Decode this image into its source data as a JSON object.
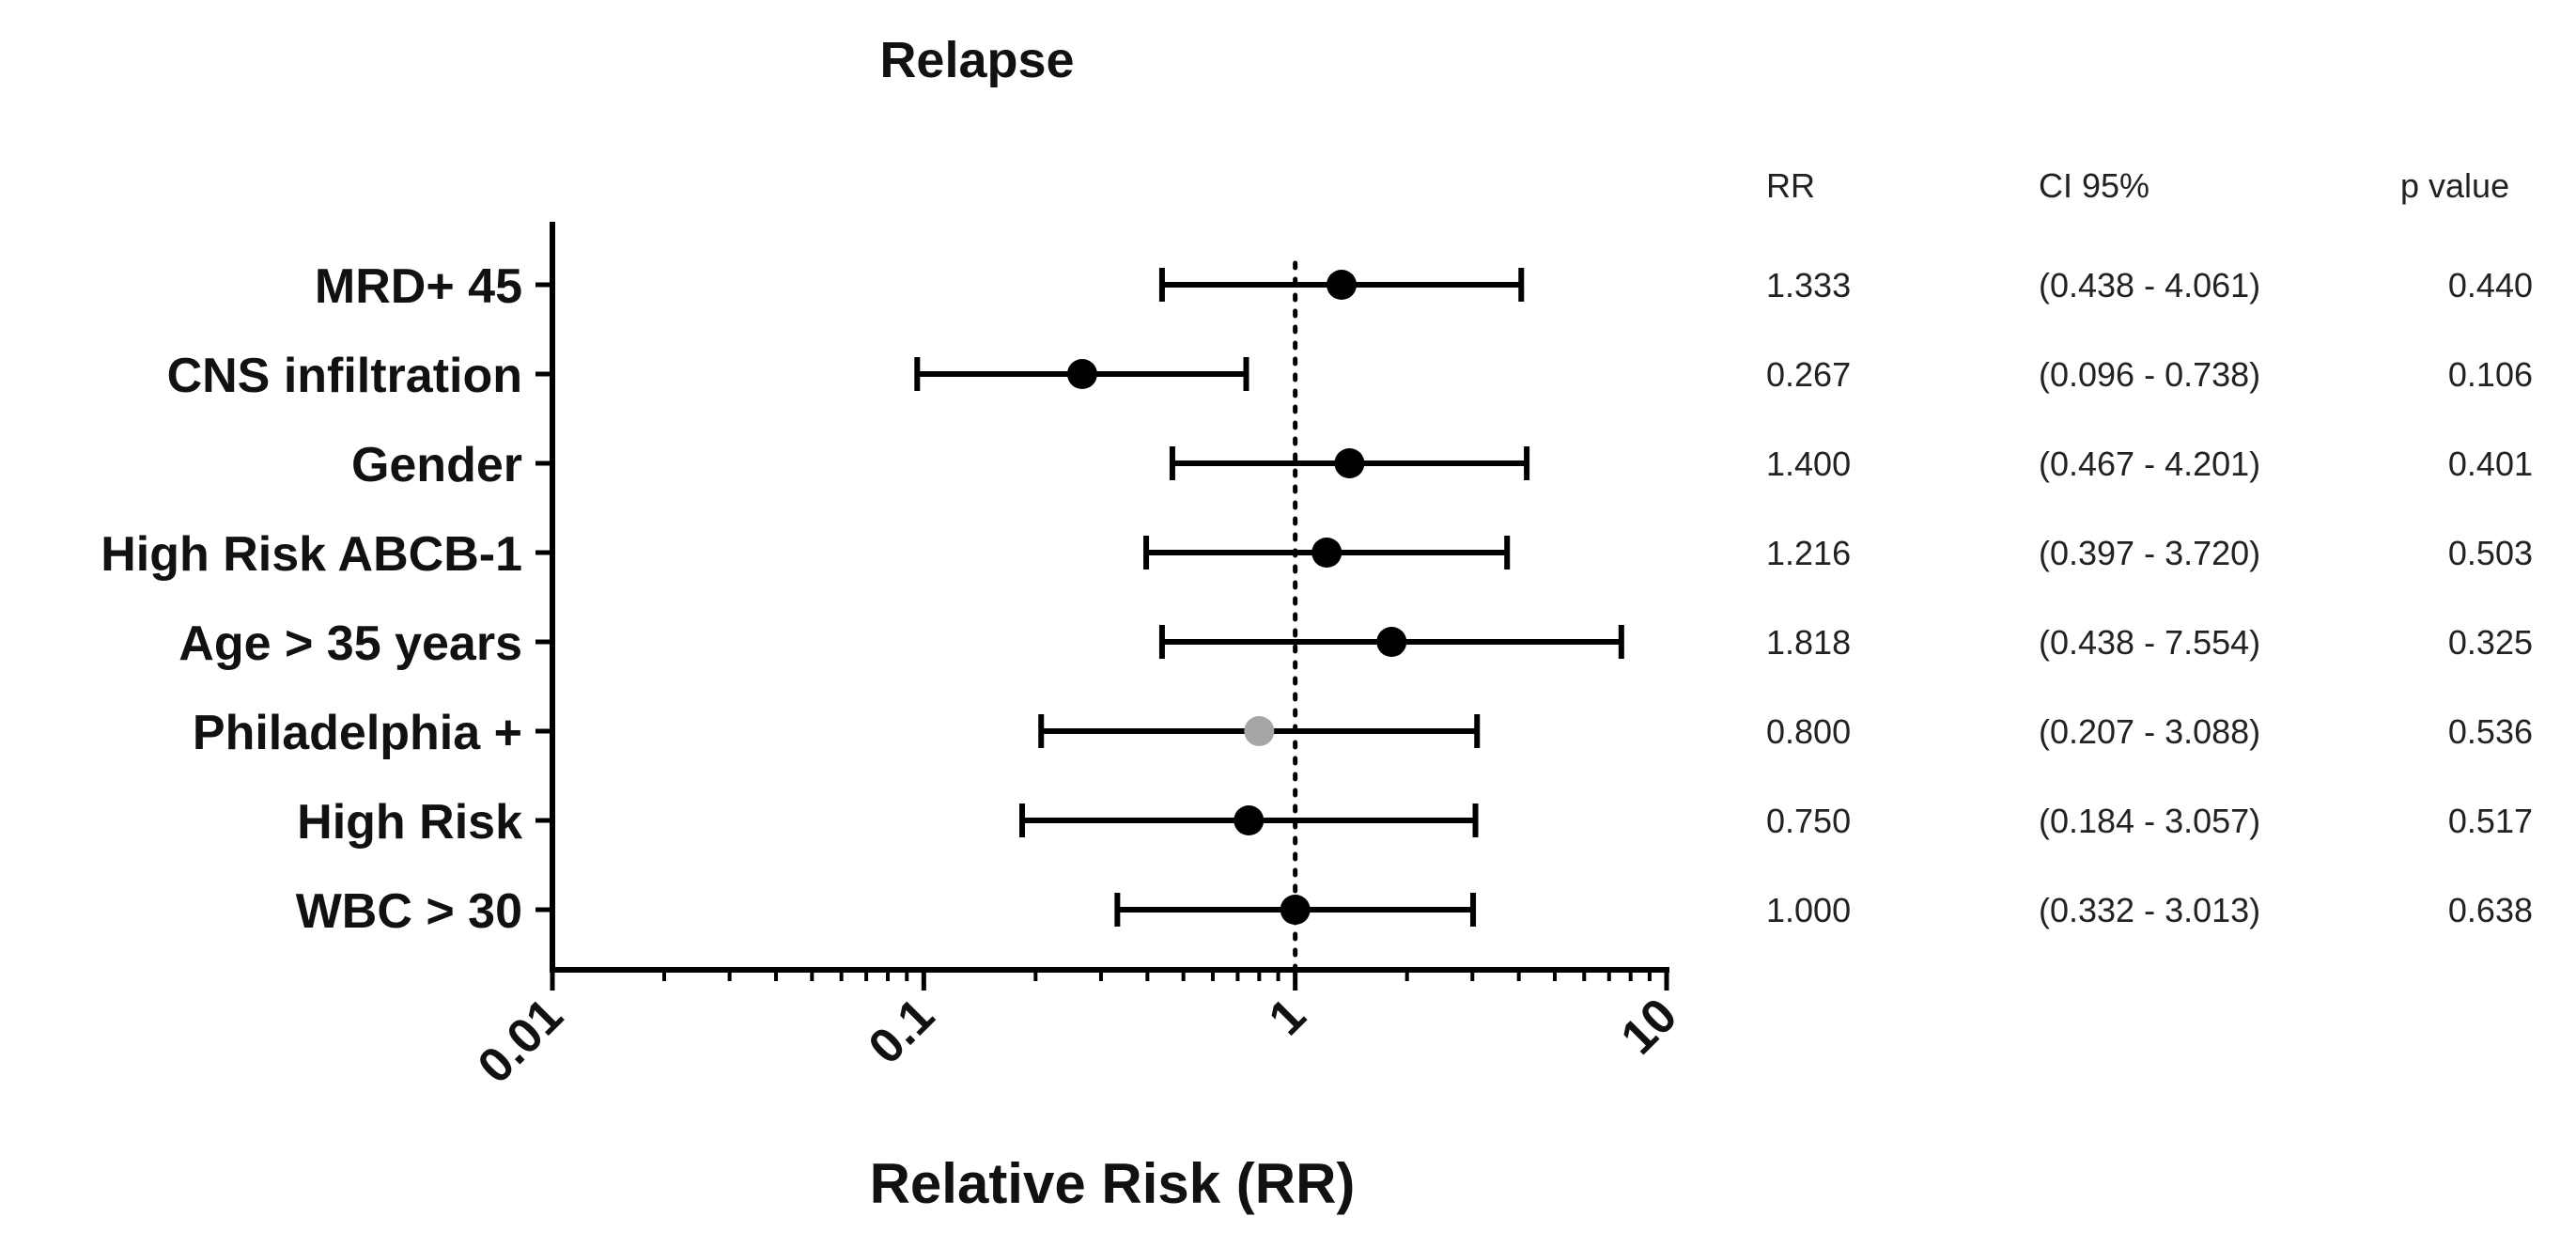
{
  "chart_data": {
    "type": "scatter",
    "title": "Relapse",
    "xlabel": "Relative Risk (RR)",
    "ylabel": "",
    "x_scale": "log",
    "xlim": [
      0.01,
      10
    ],
    "x_ticks": [
      "0.01",
      "0.1",
      "1",
      "10"
    ],
    "reference_line": 1,
    "table_headers": [
      "RR",
      "CI 95%",
      "p value"
    ],
    "colors": {
      "marker": "#000000",
      "highlight_marker": "#a6a6a6",
      "line": "#000000"
    },
    "rows": [
      {
        "label": "MRD+ 45",
        "rr": 1.333,
        "ci_low": 0.438,
        "ci_high": 4.061,
        "rr_text": "1.333",
        "ci_text": "(0.438 - 4.061)",
        "p_text": "0.440",
        "color": "#000000"
      },
      {
        "label": "CNS infiltration",
        "rr": 0.267,
        "ci_low": 0.096,
        "ci_high": 0.738,
        "rr_text": "0.267",
        "ci_text": "(0.096 - 0.738)",
        "p_text": "0.106",
        "color": "#000000"
      },
      {
        "label": "Gender",
        "rr": 1.4,
        "ci_low": 0.467,
        "ci_high": 4.201,
        "rr_text": "1.400",
        "ci_text": "(0.467 - 4.201)",
        "p_text": "0.401",
        "color": "#000000"
      },
      {
        "label": "High Risk ABCB-1",
        "rr": 1.216,
        "ci_low": 0.397,
        "ci_high": 3.72,
        "rr_text": "1.216",
        "ci_text": "(0.397 - 3.720)",
        "p_text": "0.503",
        "color": "#000000"
      },
      {
        "label": "Age > 35 years",
        "rr": 1.818,
        "ci_low": 0.438,
        "ci_high": 7.554,
        "rr_text": "1.818",
        "ci_text": "(0.438 - 7.554)",
        "p_text": "0.325",
        "color": "#000000"
      },
      {
        "label": "Philadelphia +",
        "rr": 0.8,
        "ci_low": 0.207,
        "ci_high": 3.088,
        "rr_text": "0.800",
        "ci_text": "(0.207 - 3.088)",
        "p_text": "0.536",
        "color": "#a6a6a6"
      },
      {
        "label": "High Risk",
        "rr": 0.75,
        "ci_low": 0.184,
        "ci_high": 3.057,
        "rr_text": "0.750",
        "ci_text": "(0.184 - 3.057)",
        "p_text": "0.517",
        "color": "#000000"
      },
      {
        "label": "WBC > 30",
        "rr": 1.0,
        "ci_low": 0.332,
        "ci_high": 3.013,
        "rr_text": "1.000",
        "ci_text": "(0.332 - 3.013)",
        "p_text": "0.638",
        "color": "#000000"
      }
    ]
  }
}
